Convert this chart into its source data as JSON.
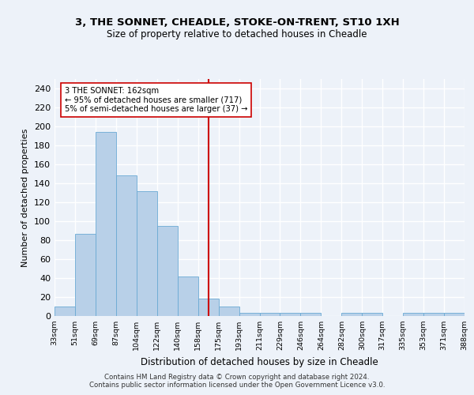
{
  "title1": "3, THE SONNET, CHEADLE, STOKE-ON-TRENT, ST10 1XH",
  "title2": "Size of property relative to detached houses in Cheadle",
  "xlabel": "Distribution of detached houses by size in Cheadle",
  "ylabel": "Number of detached properties",
  "bin_edges": [
    "33sqm",
    "51sqm",
    "69sqm",
    "87sqm",
    "104sqm",
    "122sqm",
    "140sqm",
    "158sqm",
    "175sqm",
    "193sqm",
    "211sqm",
    "229sqm",
    "246sqm",
    "264sqm",
    "282sqm",
    "300sqm",
    "317sqm",
    "335sqm",
    "353sqm",
    "371sqm",
    "388sqm"
  ],
  "bar_heights": [
    10,
    87,
    194,
    148,
    132,
    95,
    42,
    18,
    10,
    3,
    3,
    3,
    3,
    0,
    3,
    3,
    0,
    3,
    3,
    3
  ],
  "bar_color": "#b8d0e8",
  "bar_edge_color": "#6aaad4",
  "vline_index": 7.5,
  "vline_color": "#cc0000",
  "annotation_text": "3 THE SONNET: 162sqm\n← 95% of detached houses are smaller (717)\n5% of semi-detached houses are larger (37) →",
  "annotation_box_color": "#ffffff",
  "annotation_box_edge": "#cc0000",
  "footer1": "Contains HM Land Registry data © Crown copyright and database right 2024.",
  "footer2": "Contains public sector information licensed under the Open Government Licence v3.0.",
  "ylim": [
    0,
    250
  ],
  "yticks": [
    0,
    20,
    40,
    60,
    80,
    100,
    120,
    140,
    160,
    180,
    200,
    220,
    240
  ],
  "background_color": "#edf2f9",
  "grid_color": "#ffffff"
}
